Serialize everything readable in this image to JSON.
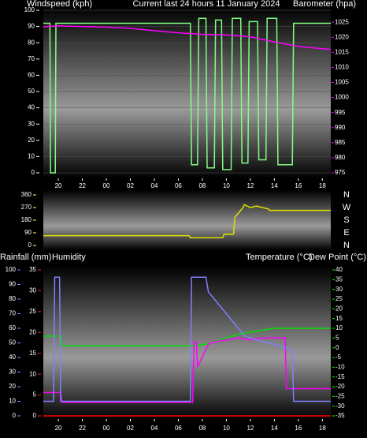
{
  "chart_data": [
    {
      "type": "line",
      "title": "Current last 24 hours 11 January 2024",
      "y_label": "Windspeed (kph)",
      "y2_label": "Barometer (hpa)",
      "xlim": [
        18.75,
        42.7
      ],
      "xticks": [
        20,
        22,
        {
          "value": 24,
          "label": "00"
        },
        {
          "value": 26,
          "label": "02"
        },
        {
          "value": 28,
          "label": "04"
        },
        {
          "value": 30,
          "label": "06"
        },
        {
          "value": 32,
          "label": "08"
        },
        {
          "value": 34,
          "label": "10"
        },
        {
          "value": 36,
          "label": "12"
        },
        {
          "value": 38,
          "label": "14"
        },
        {
          "value": 40,
          "label": "16"
        },
        {
          "value": 42,
          "label": "18"
        }
      ],
      "ylim": [
        0,
        100
      ],
      "yticks": [
        0,
        10,
        20,
        30,
        40,
        50,
        60,
        70,
        80,
        90,
        100
      ],
      "ycolor": "#ffffff",
      "y2lim": [
        975,
        1029
      ],
      "y2ticks": [
        975,
        980,
        985,
        990,
        995,
        1000,
        1005,
        1010,
        1015,
        1020,
        1025
      ],
      "y2color": "#ff00ff",
      "series": [
        {
          "color": "#80ff80",
          "axis": "y",
          "x": [
            18.75,
            19.3,
            19.35,
            19.75,
            19.8,
            31.0,
            31.1,
            31.6,
            31.7,
            32.3,
            32.4,
            33.0,
            33.1,
            33.6,
            33.7,
            34.4,
            34.5,
            35.2,
            35.3,
            35.8,
            35.9,
            36.6,
            36.7,
            37.3,
            37.4,
            38.2,
            38.3,
            38.9,
            39.0,
            39.5,
            39.6,
            42.7
          ],
          "values": [
            92,
            92,
            0,
            0,
            92,
            92,
            5,
            5,
            95,
            95,
            3,
            3,
            94,
            94,
            2,
            2,
            95,
            95,
            6,
            6,
            93,
            93,
            8,
            8,
            95,
            95,
            5,
            5,
            5,
            5,
            92,
            92
          ]
        },
        {
          "color": "#ff00ff",
          "axis": "y2",
          "x": [
            18.75,
            20,
            22,
            24,
            26,
            28,
            30,
            32,
            34,
            36,
            38,
            40,
            42,
            42.7
          ],
          "values": [
            1023.5,
            1023.8,
            1023.6,
            1023.4,
            1023,
            1022.2,
            1021.5,
            1021,
            1020.8,
            1020.2,
            1018.5,
            1017,
            1016.2,
            1016
          ]
        }
      ]
    },
    {
      "type": "line",
      "xlim": [
        18.75,
        42.7
      ],
      "ylim": [
        0,
        360
      ],
      "yticks": [
        0,
        90,
        180,
        270,
        360
      ],
      "ycolor": "#ffff80",
      "y2lim": [
        0,
        360
      ],
      "y2ticks": [
        {
          "value": 0,
          "label": "N"
        },
        {
          "value": 90,
          "label": "E"
        },
        {
          "value": 180,
          "label": "S"
        },
        {
          "value": 270,
          "label": "W"
        },
        {
          "value": 360,
          "label": "N"
        }
      ],
      "y2color": "#ffff80",
      "series": [
        {
          "color": "#e0e000",
          "axis": "y",
          "x": [
            18.75,
            30.9,
            31.0,
            33.7,
            33.8,
            34.6,
            34.7,
            35.4,
            35.5,
            36,
            36.5,
            37.5,
            37.6,
            42.7
          ],
          "values": [
            70,
            70,
            55,
            55,
            80,
            80,
            200,
            270,
            290,
            270,
            280,
            260,
            250,
            250
          ]
        }
      ]
    },
    {
      "type": "line",
      "y_label": "Humidity",
      "y2_label": "Temperature (°C)",
      "y3_label": "Rainfall (mm)",
      "y4_label": "Dew Point (°C)",
      "xlim": [
        18.75,
        42.7
      ],
      "xticks": [
        20,
        22,
        {
          "value": 24,
          "label": "00"
        },
        {
          "value": 26,
          "label": "02"
        },
        {
          "value": 28,
          "label": "04"
        },
        {
          "value": 30,
          "label": "06"
        },
        {
          "value": 32,
          "label": "08"
        },
        {
          "value": 34,
          "label": "10"
        },
        {
          "value": 36,
          "label": "12"
        },
        {
          "value": 38,
          "label": "14"
        },
        {
          "value": 40,
          "label": "16"
        },
        {
          "value": 42,
          "label": "18"
        }
      ],
      "ylim": [
        0,
        100
      ],
      "yticks": [
        0,
        10,
        20,
        30,
        40,
        50,
        60,
        70,
        80,
        90,
        100
      ],
      "ycolor": "#8080ff",
      "y2lim": [
        -35,
        40
      ],
      "y2ticks": [
        -35,
        -30,
        -25,
        -20,
        -15,
        -10,
        -5,
        0,
        5,
        10,
        15,
        20,
        25,
        30,
        35,
        40
      ],
      "y2color": "#00ff00",
      "y3lim": [
        0,
        35
      ],
      "y3ticks": [
        0,
        5,
        10,
        15,
        20,
        25,
        30,
        35
      ],
      "y3color": "#ff2020",
      "series": [
        {
          "color": "#00e000",
          "axis": "y2",
          "x": [
            18.75,
            20.2,
            20.3,
            31,
            32.5,
            34,
            35,
            36,
            37,
            38,
            38.6,
            42.7
          ],
          "values": [
            6,
            6,
            1,
            1,
            2,
            5,
            7,
            8,
            9,
            10,
            10,
            10
          ]
        },
        {
          "color": "#ff00ff",
          "axis": "y2",
          "x": [
            18.75,
            20.2,
            20.3,
            31.2,
            31.3,
            31.5,
            31.6,
            32.5,
            33,
            34,
            35,
            36,
            37,
            38,
            38.9,
            39,
            42.7
          ],
          "values": [
            -23,
            -23,
            -28,
            -28,
            3,
            3,
            -10,
            2,
            3,
            4,
            5,
            4,
            5,
            5,
            5,
            -21,
            -21
          ]
        },
        {
          "color": "#8080ff",
          "axis": "y",
          "x": [
            18.75,
            19.6,
            19.7,
            20.1,
            20.2,
            31,
            31.1,
            32.3,
            32.5,
            33.5,
            34.5,
            35.5,
            36.5,
            37.5,
            38.5,
            39.5,
            39.6,
            42.7
          ],
          "values": [
            10,
            10,
            95,
            95,
            10,
            10,
            95,
            95,
            85,
            75,
            65,
            55,
            52,
            50,
            48,
            45,
            10,
            10
          ]
        },
        {
          "color": "#ff0000",
          "axis": "y3",
          "x": [
            18.75,
            42.7
          ],
          "values": [
            0,
            0
          ]
        }
      ]
    }
  ]
}
